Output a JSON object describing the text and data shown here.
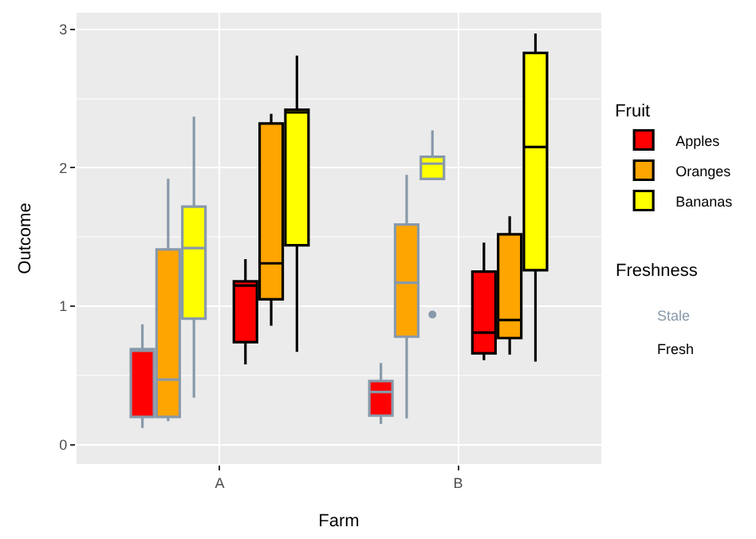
{
  "chart_data": {
    "type": "box",
    "xlabel": "Farm",
    "ylabel": "Outcome",
    "categories": [
      "A",
      "B"
    ],
    "ylim": [
      -0.14,
      3.12
    ],
    "yticks": [
      0,
      1,
      2,
      3
    ],
    "grid": true,
    "legend": "right",
    "legend_title": "Fruit",
    "annotations": [
      "Freshness",
      "Stale",
      "Fresh"
    ],
    "series": [
      {
        "color": "#ff0000",
        "boxes": [
          {
            "low": 0.12,
            "q1": 0.2,
            "median": 0.68,
            "q3": 0.69,
            "high": 0.87
          },
          {
            "low": 0.15,
            "q1": 0.21,
            "median": 0.38,
            "q3": 0.46,
            "high": 0.59
          }
        ]
      },
      {
        "color": "#ffa500",
        "boxes": [
          {
            "low": 0.17,
            "q1": 0.2,
            "median": 0.47,
            "q3": 1.41,
            "high": 1.92
          },
          {
            "low": 0.19,
            "q1": 0.78,
            "median": 1.17,
            "q3": 1.59,
            "high": 1.95
          }
        ]
      },
      {
        "color": "#ffff00",
        "boxes": [
          {
            "low": 0.34,
            "q1": 0.91,
            "median": 1.42,
            "q3": 1.72,
            "high": 2.37
          },
          {
            "low": 1.92,
            "q1": 1.92,
            "median": 2.03,
            "q3": 2.08,
            "high": 2.27,
            "outliers": [
              0.94
            ]
          }
        ]
      },
      {
        "name": "Apples",
        "color": "#ff0000",
        "boxes": [
          {
            "low": 0.58,
            "q1": 0.74,
            "median": 1.15,
            "q3": 1.18,
            "high": 1.34
          },
          {
            "low": 0.61,
            "q1": 0.66,
            "median": 0.81,
            "q3": 1.25,
            "high": 1.46
          }
        ]
      },
      {
        "name": "Oranges",
        "color": "#ffa500",
        "boxes": [
          {
            "low": 0.86,
            "q1": 1.05,
            "median": 1.31,
            "q3": 2.32,
            "high": 2.39
          },
          {
            "low": 0.65,
            "q1": 0.77,
            "median": 0.9,
            "q3": 1.52,
            "high": 1.65
          }
        ]
      },
      {
        "name": "Bananas",
        "color": "#ffff00",
        "boxes": [
          {
            "low": 0.67,
            "q1": 1.44,
            "median": 2.4,
            "q3": 2.42,
            "high": 2.81
          },
          {
            "low": 0.6,
            "q1": 1.26,
            "median": 2.15,
            "q3": 2.83,
            "high": 2.97
          }
        ]
      }
    ]
  }
}
